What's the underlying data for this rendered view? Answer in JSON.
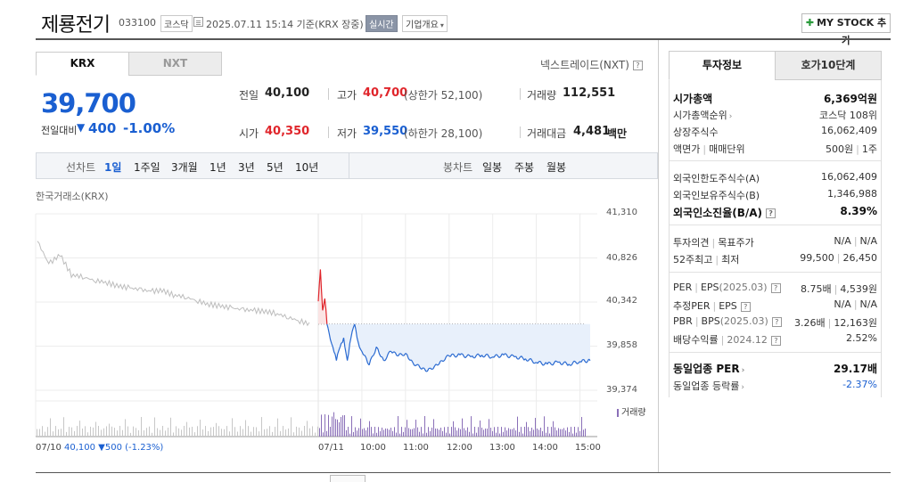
{
  "header": {
    "name": "제룡전기",
    "code": "033100",
    "market": "코스닥",
    "datetime": "2025.07.11 15:14 기준(KRX 장중)",
    "realtime": "실시간",
    "company_info": "기업개요",
    "mystock": "MY STOCK 추가"
  },
  "tabs": {
    "krx": "KRX",
    "nxt": "NXT"
  },
  "nxt_link": "넥스트레이드(NXT)",
  "price": {
    "current": "39,700",
    "change_label": "전일대비",
    "change_value": "400",
    "change_pct": "-1.00%"
  },
  "stats": {
    "prev_close_label": "전일",
    "prev_close": "40,100",
    "open_label": "시가",
    "open": "40,350",
    "high_label": "고가",
    "high": "40,700",
    "upper_limit": "(상한가 52,100)",
    "low_label": "저가",
    "low": "39,550",
    "lower_limit": "(하한가 28,100)",
    "volume_label": "거래량",
    "volume": "112,551",
    "value_label": "거래대금",
    "value": "4,481",
    "value_unit": "백만"
  },
  "period_bar": {
    "line_label": "선차트",
    "line_items": [
      "1일",
      "1주일",
      "3개월",
      "1년",
      "3년",
      "5년",
      "10년"
    ],
    "selected": "1일",
    "candle_label": "봉차트",
    "candle_items": [
      "일봉",
      "주봉",
      "월봉"
    ]
  },
  "chart_data": {
    "type": "line",
    "title": "한국거래소(KRX)",
    "yticks": [
      "41,310",
      "40,826",
      "40,342",
      "39,858",
      "39,374"
    ],
    "ylim": [
      39374,
      41310
    ],
    "prev_close": 40100,
    "prev_day_label": "07/10",
    "prev_day_summary": "40,100 ▼500 (-1.23%)",
    "day_label": "07/11",
    "xticks": [
      "10:00",
      "11:00",
      "12:00",
      "13:00",
      "14:00",
      "15:00"
    ],
    "volume_legend": "거래량",
    "prev_day_series": [
      41010,
      40760,
      40860,
      40640,
      40620,
      40580,
      40560,
      40520,
      40500,
      40480,
      40460,
      40470,
      40420,
      40400,
      40360,
      40320,
      40300,
      40280,
      40260,
      40250,
      40240,
      40220,
      40180,
      40140,
      40100
    ],
    "series": [
      {
        "time": "09:00",
        "value": 40350
      },
      {
        "time": "09:03",
        "value": 40700
      },
      {
        "time": "09:06",
        "value": 40250
      },
      {
        "time": "09:09",
        "value": 40380
      },
      {
        "time": "09:12",
        "value": 40100
      },
      {
        "time": "09:15",
        "value": 40000
      },
      {
        "time": "09:20",
        "value": 39850
      },
      {
        "time": "09:25",
        "value": 39700
      },
      {
        "time": "09:30",
        "value": 39850
      },
      {
        "time": "09:35",
        "value": 39950
      },
      {
        "time": "09:40",
        "value": 39700
      },
      {
        "time": "09:45",
        "value": 39950
      },
      {
        "time": "09:50",
        "value": 40100
      },
      {
        "time": "09:55",
        "value": 39900
      },
      {
        "time": "10:00",
        "value": 39800
      },
      {
        "time": "10:10",
        "value": 39650
      },
      {
        "time": "10:20",
        "value": 39850
      },
      {
        "time": "10:30",
        "value": 39700
      },
      {
        "time": "10:40",
        "value": 39800
      },
      {
        "time": "10:50",
        "value": 39750
      },
      {
        "time": "11:00",
        "value": 39780
      },
      {
        "time": "11:10",
        "value": 39680
      },
      {
        "time": "11:20",
        "value": 39620
      },
      {
        "time": "11:30",
        "value": 39580
      },
      {
        "time": "11:40",
        "value": 39640
      },
      {
        "time": "11:50",
        "value": 39700
      },
      {
        "time": "12:00",
        "value": 39750
      },
      {
        "time": "12:15",
        "value": 39760
      },
      {
        "time": "12:30",
        "value": 39740
      },
      {
        "time": "12:45",
        "value": 39760
      },
      {
        "time": "13:00",
        "value": 39740
      },
      {
        "time": "13:15",
        "value": 39760
      },
      {
        "time": "13:30",
        "value": 39740
      },
      {
        "time": "13:45",
        "value": 39720
      },
      {
        "time": "14:00",
        "value": 39680
      },
      {
        "time": "14:15",
        "value": 39660
      },
      {
        "time": "14:30",
        "value": 39680
      },
      {
        "time": "14:45",
        "value": 39660
      },
      {
        "time": "15:00",
        "value": 39690
      },
      {
        "time": "15:14",
        "value": 39700
      }
    ],
    "colors": {
      "up": "#e0252b",
      "down": "#2a6ad1",
      "prev": "#bdbdbd",
      "fill": "#e8f0fb",
      "volume": "#8a6fb8"
    }
  },
  "right_tabs": {
    "invest": "투자정보",
    "hoga": "호가10단계"
  },
  "invest": {
    "market_cap_label": "시가총액",
    "market_cap": "6,369억원",
    "market_cap_rank_label": "시가총액순위",
    "market_cap_rank": "코스닥 108위",
    "listed_shares_label": "상장주식수",
    "listed_shares": "16,062,409",
    "par_label": "액면가",
    "trade_unit_label": "매매단위",
    "par": "500원",
    "trade_unit": "1주",
    "foreign_limit_label": "외국인한도주식수(A)",
    "foreign_limit": "16,062,409",
    "foreign_hold_label": "외국인보유주식수(B)",
    "foreign_hold": "1,346,988",
    "foreign_ratio_label": "외국인소진율(B/A)",
    "foreign_ratio": "8.39%",
    "opinion_label": "투자의견",
    "target_label": "목표주가",
    "opinion": "N/A",
    "target": "N/A",
    "w52_high_label": "52주최고",
    "w52_low_label": "최저",
    "w52_high": "99,500",
    "w52_low": "26,450",
    "per_label": "PER",
    "eps_label": "EPS",
    "per_period": "(2025.03)",
    "per": "8.75배",
    "eps": "4,539원",
    "est_per_label": "추정PER",
    "est_eps_label": "EPS",
    "est_per": "N/A",
    "est_eps": "N/A",
    "pbr_label": "PBR",
    "bps_label": "BPS",
    "pbr_period": "(2025.03)",
    "pbr": "3.26배",
    "bps": "12,163원",
    "div_label": "배당수익률",
    "div_period": "2024.12",
    "div": "2.52%",
    "sector_per_label": "동일업종 PER",
    "sector_per": "29.17배",
    "sector_rate_label": "동일업종 등락률",
    "sector_rate": "-2.37%"
  }
}
